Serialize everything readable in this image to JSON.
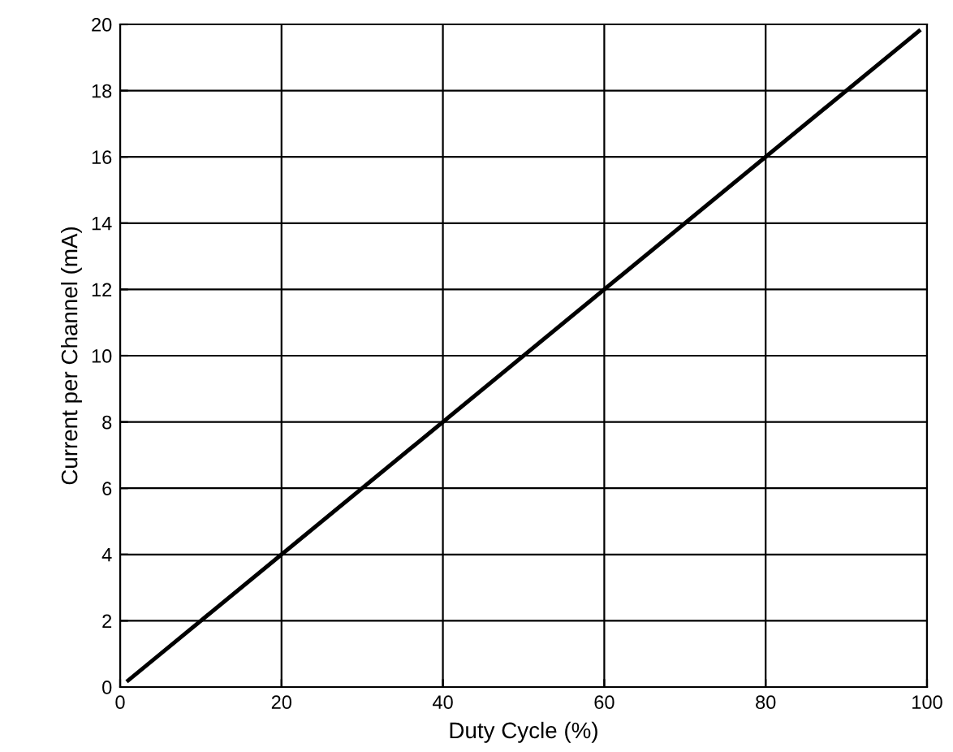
{
  "chart_data": {
    "type": "line",
    "xlabel": "Duty Cycle (%)",
    "ylabel": "Current per Channel (mA)",
    "series": [
      {
        "color": "#000000",
        "x": [
          1,
          99
        ],
        "values": [
          0.2,
          19.8
        ]
      }
    ],
    "xlim": [
      0,
      100
    ],
    "xticks": [
      0,
      20,
      40,
      60,
      80,
      100
    ],
    "ylim": [
      0,
      20
    ],
    "yticks": [
      0,
      2,
      4,
      6,
      8,
      10,
      12,
      14,
      16,
      18,
      20
    ],
    "grid": true,
    "marker": "none",
    "line_style": "solid"
  }
}
